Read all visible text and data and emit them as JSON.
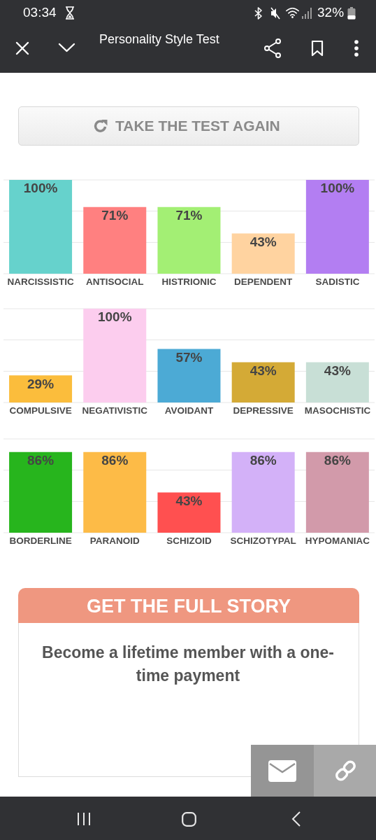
{
  "chart_data": [
    {
      "type": "bar",
      "title": "Personality Style Test",
      "categories": [
        "NARCISSISTIC",
        "ANTISOCIAL",
        "HISTRIONIC",
        "DEPENDENT",
        "SADISTIC"
      ],
      "values": [
        100,
        71,
        71,
        43,
        100
      ],
      "colors": [
        "#66d2cc",
        "#ff8080",
        "#a3ef74",
        "#ffd3a0",
        "#b37ef2"
      ],
      "value_labels": [
        "100%",
        "71%",
        "71%",
        "43%",
        "100%"
      ],
      "ylim": [
        0,
        100
      ],
      "yticks": [
        {
          "value": 0,
          "label": null
        },
        {
          "value": 33.3,
          "label": null
        },
        {
          "value": 66.7,
          "label": null
        },
        {
          "value": 100,
          "label": null
        }
      ],
      "grid": "y",
      "tick_labels": "x",
      "annotations": [
        "03:34",
        "32%",
        "TAKE THE TEST AGAIN"
      ]
    },
    {
      "type": "bar",
      "categories": [
        "COMPULSIVE",
        "NEGATIVISTIC",
        "AVOIDANT",
        "DEPRESSIVE",
        "MASOCHISTIC"
      ],
      "values": [
        29,
        100,
        57,
        43,
        43
      ],
      "colors": [
        "#fbbd3c",
        "#fccdee",
        "#4caad5",
        "#d4aa36",
        "#c8dfd6"
      ],
      "value_labels": [
        "29%",
        "100%",
        "57%",
        "43%",
        "43%"
      ],
      "ylim": [
        0,
        100
      ],
      "yticks": [
        {
          "value": 0,
          "label": null
        },
        {
          "value": 33.3,
          "label": null
        },
        {
          "value": 66.7,
          "label": null
        },
        {
          "value": 100,
          "label": null
        }
      ],
      "grid": "y",
      "tick_labels": "x"
    },
    {
      "type": "bar",
      "categories": [
        "BORDERLINE",
        "PARANOID",
        "SCHIZOID",
        "SCHIZOTYPAL",
        "HYPOMANIAC"
      ],
      "values": [
        86,
        86,
        43,
        86,
        86
      ],
      "colors": [
        "#27b51d",
        "#fdbb47",
        "#ff5050",
        "#d3b1f8",
        "#d29aaa"
      ],
      "value_labels": [
        "86%",
        "86%",
        "43%",
        "86%",
        "86%"
      ],
      "ylim": [
        0,
        100
      ],
      "yticks": [
        {
          "value": 0,
          "label": null
        },
        {
          "value": 33.3,
          "label": null
        },
        {
          "value": 66.7,
          "label": null
        },
        {
          "value": 100,
          "label": null
        }
      ],
      "grid": "y",
      "tick_labels": "x",
      "annotations": [
        "GET THE FULL STORY",
        "Become a lifetime member with a one-time payment"
      ]
    }
  ]
}
